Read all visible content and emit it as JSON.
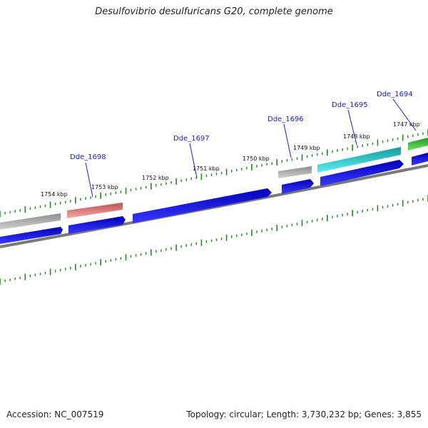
{
  "title": "Desulfovibrio desulfuricans G20, complete genome",
  "footer": {
    "accession": "Accession: NC_007519",
    "summary": "Topology: circular; Length: 3,730,232 bp; Genes: 3,855"
  },
  "tick_labels": [
    "1754 kbp",
    "1753 kbp",
    "1752 kbp",
    "1751 kbp",
    "1750 kbp",
    "1749 kbp",
    "1748 kbp",
    "1747 kbp"
  ],
  "gene_labels": [
    "Dde_1698",
    "Dde_1697",
    "Dde_1696",
    "Dde_1695",
    "Dde_1694"
  ],
  "colors": {
    "backbone": "#7a7a7a",
    "forward_cds": "#0000e0",
    "tick": "#1f8a1f",
    "label_line": "#1c1cd6",
    "feature_gray": "#a8a8a8",
    "feature_red": "#e88080",
    "feature_cyan": "#22d0d6",
    "feature_green": "#3cc43c"
  }
}
